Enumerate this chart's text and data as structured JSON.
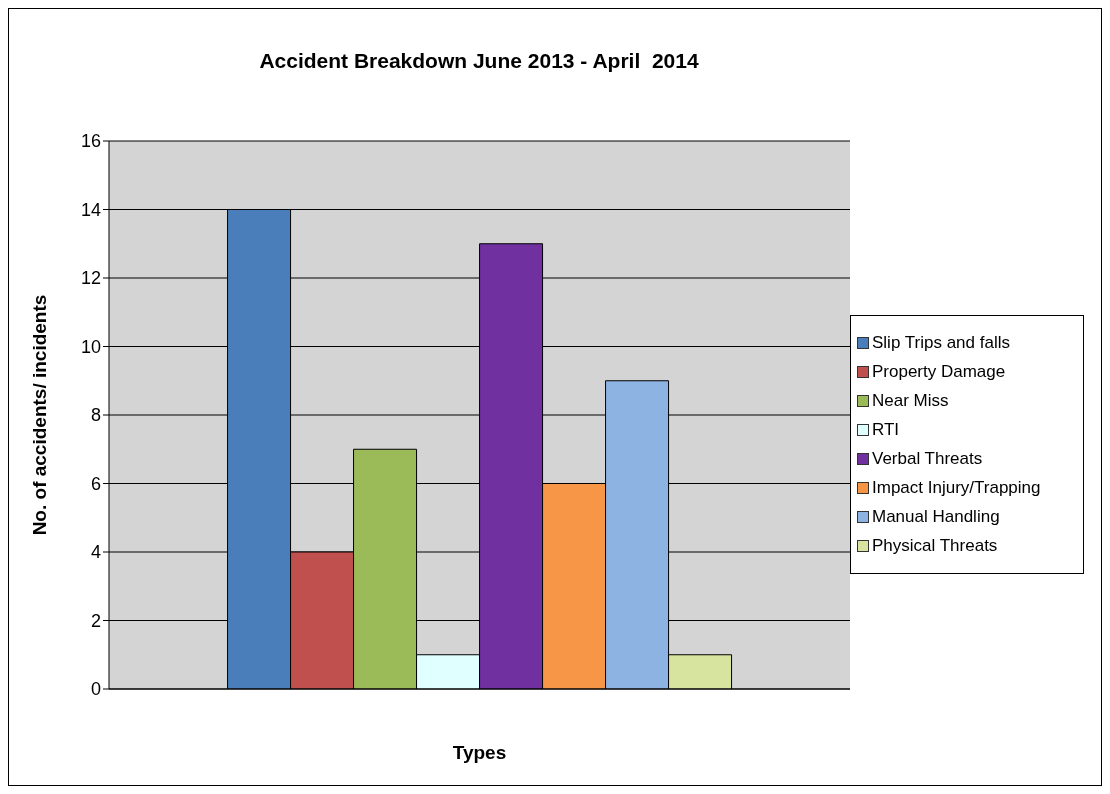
{
  "chart_data": {
    "type": "bar",
    "title": "Accident Breakdown June 2013 - April  2014",
    "xlabel": "Types",
    "ylabel": "No. of accidents/ incidents",
    "categories": [
      null
    ],
    "series": [
      {
        "name": "Slip Trips and falls",
        "color": "#4a7ebb",
        "values": [
          14
        ]
      },
      {
        "name": "Property Damage",
        "color": "#c0504d",
        "values": [
          4
        ]
      },
      {
        "name": "Near Miss",
        "color": "#9bbb59",
        "values": [
          7
        ]
      },
      {
        "name": "RTI",
        "color": "#e0ffff",
        "values": [
          1
        ]
      },
      {
        "name": "Verbal Threats",
        "color": "#7030a0",
        "values": [
          13
        ]
      },
      {
        "name": "Impact Injury/Trapping",
        "color": "#f79646",
        "values": [
          6
        ]
      },
      {
        "name": "Manual Handling",
        "color": "#8db3e2",
        "values": [
          9
        ]
      },
      {
        "name": "Physical Threats",
        "color": "#d7e4a0",
        "values": [
          1
        ]
      }
    ],
    "ylim": [
      0,
      16
    ],
    "yticks": [
      0,
      2,
      4,
      6,
      8,
      10,
      12,
      14,
      16
    ],
    "grid": "y",
    "legend": "right"
  }
}
